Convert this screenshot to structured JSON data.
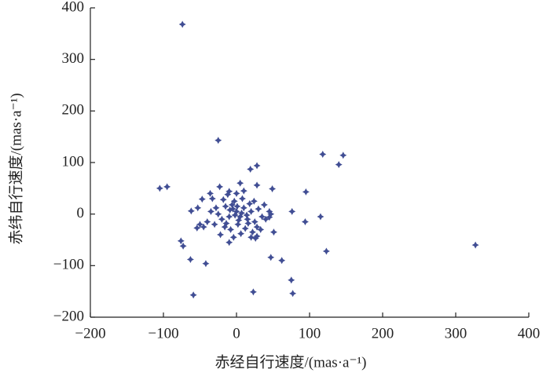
{
  "chart_data": {
    "type": "scatter",
    "xlabel": "赤经自行速度/(mas·a⁻¹)",
    "ylabel": "赤纬自行速度/(mas·a⁻¹)",
    "color": "#414e94",
    "xlim": [
      -200,
      400
    ],
    "ylim": [
      -200,
      400
    ],
    "xticks": [
      {
        "value": -200,
        "label": "−200"
      },
      {
        "value": -100,
        "label": "−100"
      },
      0,
      100,
      200,
      300,
      400
    ],
    "yticks": [
      {
        "value": -200,
        "label": "−200"
      },
      {
        "value": -100,
        "label": "−100"
      },
      0,
      100,
      200,
      300,
      400
    ],
    "x": [
      -74,
      -25,
      118,
      146,
      140,
      327,
      -105,
      -95,
      -23,
      -10,
      19,
      28,
      28,
      49,
      95,
      76,
      115,
      94,
      123,
      62,
      47,
      75,
      77,
      23,
      -59,
      -63,
      -42,
      -76,
      -73,
      -62,
      -53,
      -47,
      -54,
      47,
      45,
      51,
      26,
      28,
      -5,
      0,
      5,
      -10,
      10,
      15,
      -15,
      20,
      -20,
      2,
      -3,
      8,
      25,
      -25,
      30,
      -30,
      12,
      -8,
      18,
      -18,
      35,
      -35,
      0,
      5,
      -12,
      22,
      -22,
      38,
      -40,
      3,
      -2,
      7,
      -6,
      14,
      -14,
      28,
      -28,
      10,
      -4,
      33,
      -33,
      1,
      -9,
      16,
      24,
      -16,
      6,
      40,
      -45,
      -50,
      -10,
      20,
      45,
      -36
    ],
    "values": [
      368,
      143,
      116,
      114,
      96,
      -60,
      50,
      53,
      53,
      44,
      87,
      94,
      56,
      49,
      43,
      5,
      -5,
      -15,
      -72,
      -90,
      -84,
      -128,
      -154,
      -151,
      -157,
      -88,
      -96,
      -52,
      -62,
      6,
      12,
      29,
      -27,
      0,
      -6,
      -35,
      -47,
      -43,
      10,
      5,
      -5,
      -5,
      12,
      -10,
      15,
      5,
      -10,
      -20,
      25,
      30,
      -15,
      0,
      10,
      -20,
      -28,
      -30,
      20,
      28,
      -5,
      5,
      40,
      60,
      38,
      -35,
      -40,
      18,
      -15,
      -12,
      -2,
      2,
      18,
      -2,
      -18,
      -25,
      12,
      45,
      -45,
      -30,
      30,
      15,
      8,
      -18,
      25,
      -25,
      -38,
      -10,
      -25,
      -20,
      -55,
      -45,
      5,
      40
    ]
  }
}
